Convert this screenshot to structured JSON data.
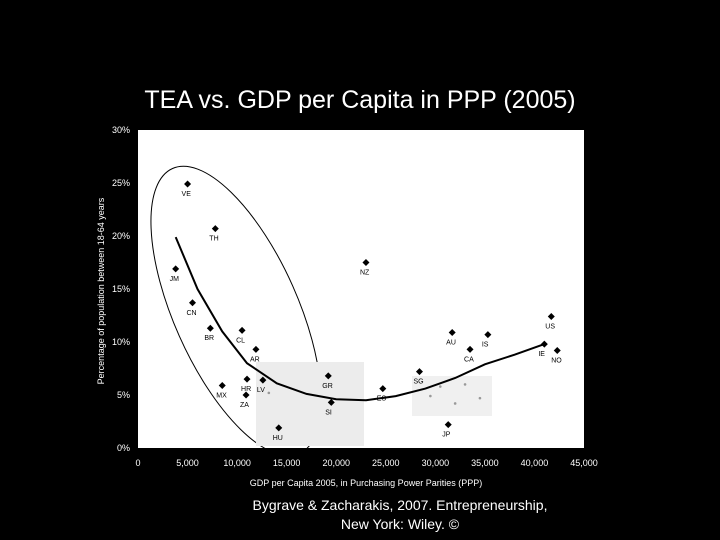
{
  "title": "TEA vs. GDP per Capita in PPP (2005)",
  "caption_line1": "Bygrave & Zacharakis, 2007.  Entrepreneurship,",
  "caption_line2": "New York: Wiley.  ©",
  "chart_data": {
    "type": "scatter",
    "title": "TEA vs. GDP per Capita in PPP (2005)",
    "xlabel": "GDP per Capita 2005, in Purchasing Power Parities (PPP)",
    "ylabel": "Percentage of population between 18-64 years",
    "xlim": [
      0,
      45000
    ],
    "ylim": [
      0,
      30
    ],
    "x_ticks": [
      "0",
      "5,000",
      "10,000",
      "15,000",
      "20,000",
      "25,000",
      "30,000",
      "35,000",
      "40,000",
      "45,000"
    ],
    "y_ticks": [
      "0%",
      "5%",
      "10%",
      "15%",
      "20%",
      "25%",
      "30%"
    ],
    "grid": false,
    "points": [
      {
        "label": "VE",
        "x": 5000,
        "y": 24.9
      },
      {
        "label": "TH",
        "x": 7800,
        "y": 20.7
      },
      {
        "label": "JM",
        "x": 3800,
        "y": 16.9
      },
      {
        "label": "NZ",
        "x": 23000,
        "y": 17.5
      },
      {
        "label": "CN",
        "x": 5500,
        "y": 13.7
      },
      {
        "label": "CL",
        "x": 10500,
        "y": 11.1
      },
      {
        "label": "BR",
        "x": 7300,
        "y": 11.3
      },
      {
        "label": "AR",
        "x": 11900,
        "y": 9.3
      },
      {
        "label": "MX",
        "x": 8500,
        "y": 5.9
      },
      {
        "label": "HR",
        "x": 11000,
        "y": 6.5
      },
      {
        "label": "LV",
        "x": 12600,
        "y": 6.4
      },
      {
        "label": "ZA",
        "x": 10900,
        "y": 5.0
      },
      {
        "label": "HU",
        "x": 14200,
        "y": 1.9
      },
      {
        "label": "GR",
        "x": 19200,
        "y": 6.8
      },
      {
        "label": "SI",
        "x": 19500,
        "y": 4.3
      },
      {
        "label": "ES",
        "x": 24700,
        "y": 5.6
      },
      {
        "label": "SG",
        "x": 28400,
        "y": 7.2
      },
      {
        "label": "JP",
        "x": 31300,
        "y": 2.2
      },
      {
        "label": "AU",
        "x": 31700,
        "y": 10.9
      },
      {
        "label": "CA",
        "x": 33500,
        "y": 9.3
      },
      {
        "label": "IS",
        "x": 35300,
        "y": 10.7
      },
      {
        "label": "US",
        "x": 41700,
        "y": 12.4
      },
      {
        "label": "IE",
        "x": 41000,
        "y": 9.8
      },
      {
        "label": "NO",
        "x": 42300,
        "y": 9.2
      },
      {
        "label": "",
        "x": 30500,
        "y": 5.8
      },
      {
        "label": "",
        "x": 33000,
        "y": 6.0
      },
      {
        "label": "",
        "x": 34500,
        "y": 4.7
      },
      {
        "label": "",
        "x": 32000,
        "y": 4.2
      },
      {
        "label": "",
        "x": 29500,
        "y": 4.9
      },
      {
        "label": "",
        "x": 13200,
        "y": 5.2
      }
    ],
    "trend": {
      "x": [
        3800,
        6000,
        8500,
        11000,
        14000,
        17000,
        20000,
        23000,
        26000,
        29000,
        32000,
        35000,
        38000,
        41000
      ],
      "y": [
        19.9,
        15.0,
        11.0,
        8.0,
        6.1,
        5.1,
        4.6,
        4.5,
        4.9,
        5.6,
        6.6,
        7.9,
        8.8,
        9.8
      ]
    },
    "ellipse_note": "developing economies grouped by ellipse"
  }
}
